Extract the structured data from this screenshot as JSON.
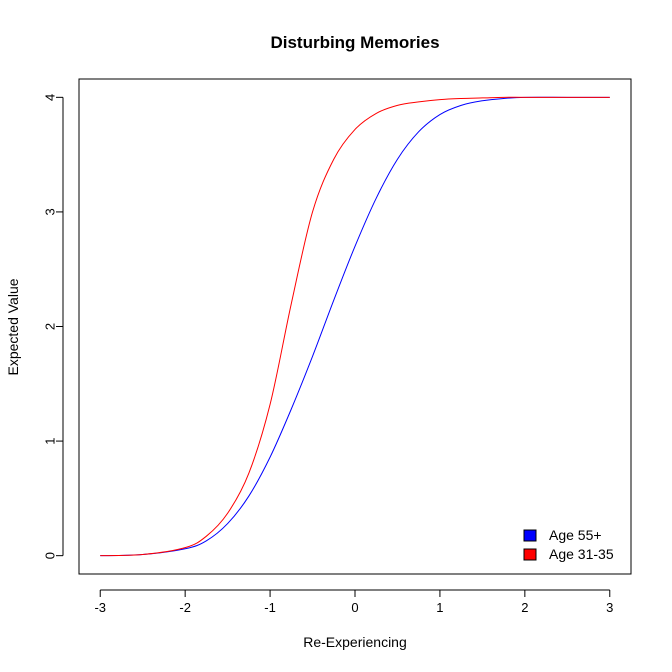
{
  "chart_data": {
    "type": "line",
    "title": "Disturbing Memories",
    "xlabel": "Re-Experiencing",
    "ylabel": "Expected Value",
    "xlim": [
      -3.25,
      3.25
    ],
    "ylim": [
      -0.16,
      4.16
    ],
    "x_ticks": [
      "-3",
      "-2",
      "-1",
      "0",
      "1",
      "2",
      "3"
    ],
    "y_ticks": [
      "0",
      "1",
      "2",
      "3",
      "4"
    ],
    "grid": false,
    "legend_position": "bottom-right",
    "x": [
      -3.0,
      -2.5,
      -2.0,
      -1.75,
      -1.5,
      -1.25,
      -1.0,
      -0.75,
      -0.5,
      -0.25,
      0.0,
      0.25,
      0.5,
      0.75,
      1.0,
      1.25,
      1.5,
      1.75,
      2.0,
      2.5,
      3.0
    ],
    "series": [
      {
        "name": "Age 55+",
        "color": "#0000ff",
        "values": [
          0.0,
          0.01,
          0.06,
          0.13,
          0.28,
          0.52,
          0.86,
          1.28,
          1.74,
          2.23,
          2.7,
          3.12,
          3.46,
          3.7,
          3.85,
          3.93,
          3.97,
          3.99,
          4.0,
          4.0,
          4.0
        ]
      },
      {
        "name": "Age 31-35",
        "color": "#ff0000",
        "values": [
          0.0,
          0.01,
          0.07,
          0.17,
          0.37,
          0.72,
          1.32,
          2.2,
          3.0,
          3.46,
          3.72,
          3.86,
          3.93,
          3.96,
          3.98,
          3.99,
          3.995,
          4.0,
          4.0,
          4.0,
          4.0
        ]
      }
    ]
  }
}
